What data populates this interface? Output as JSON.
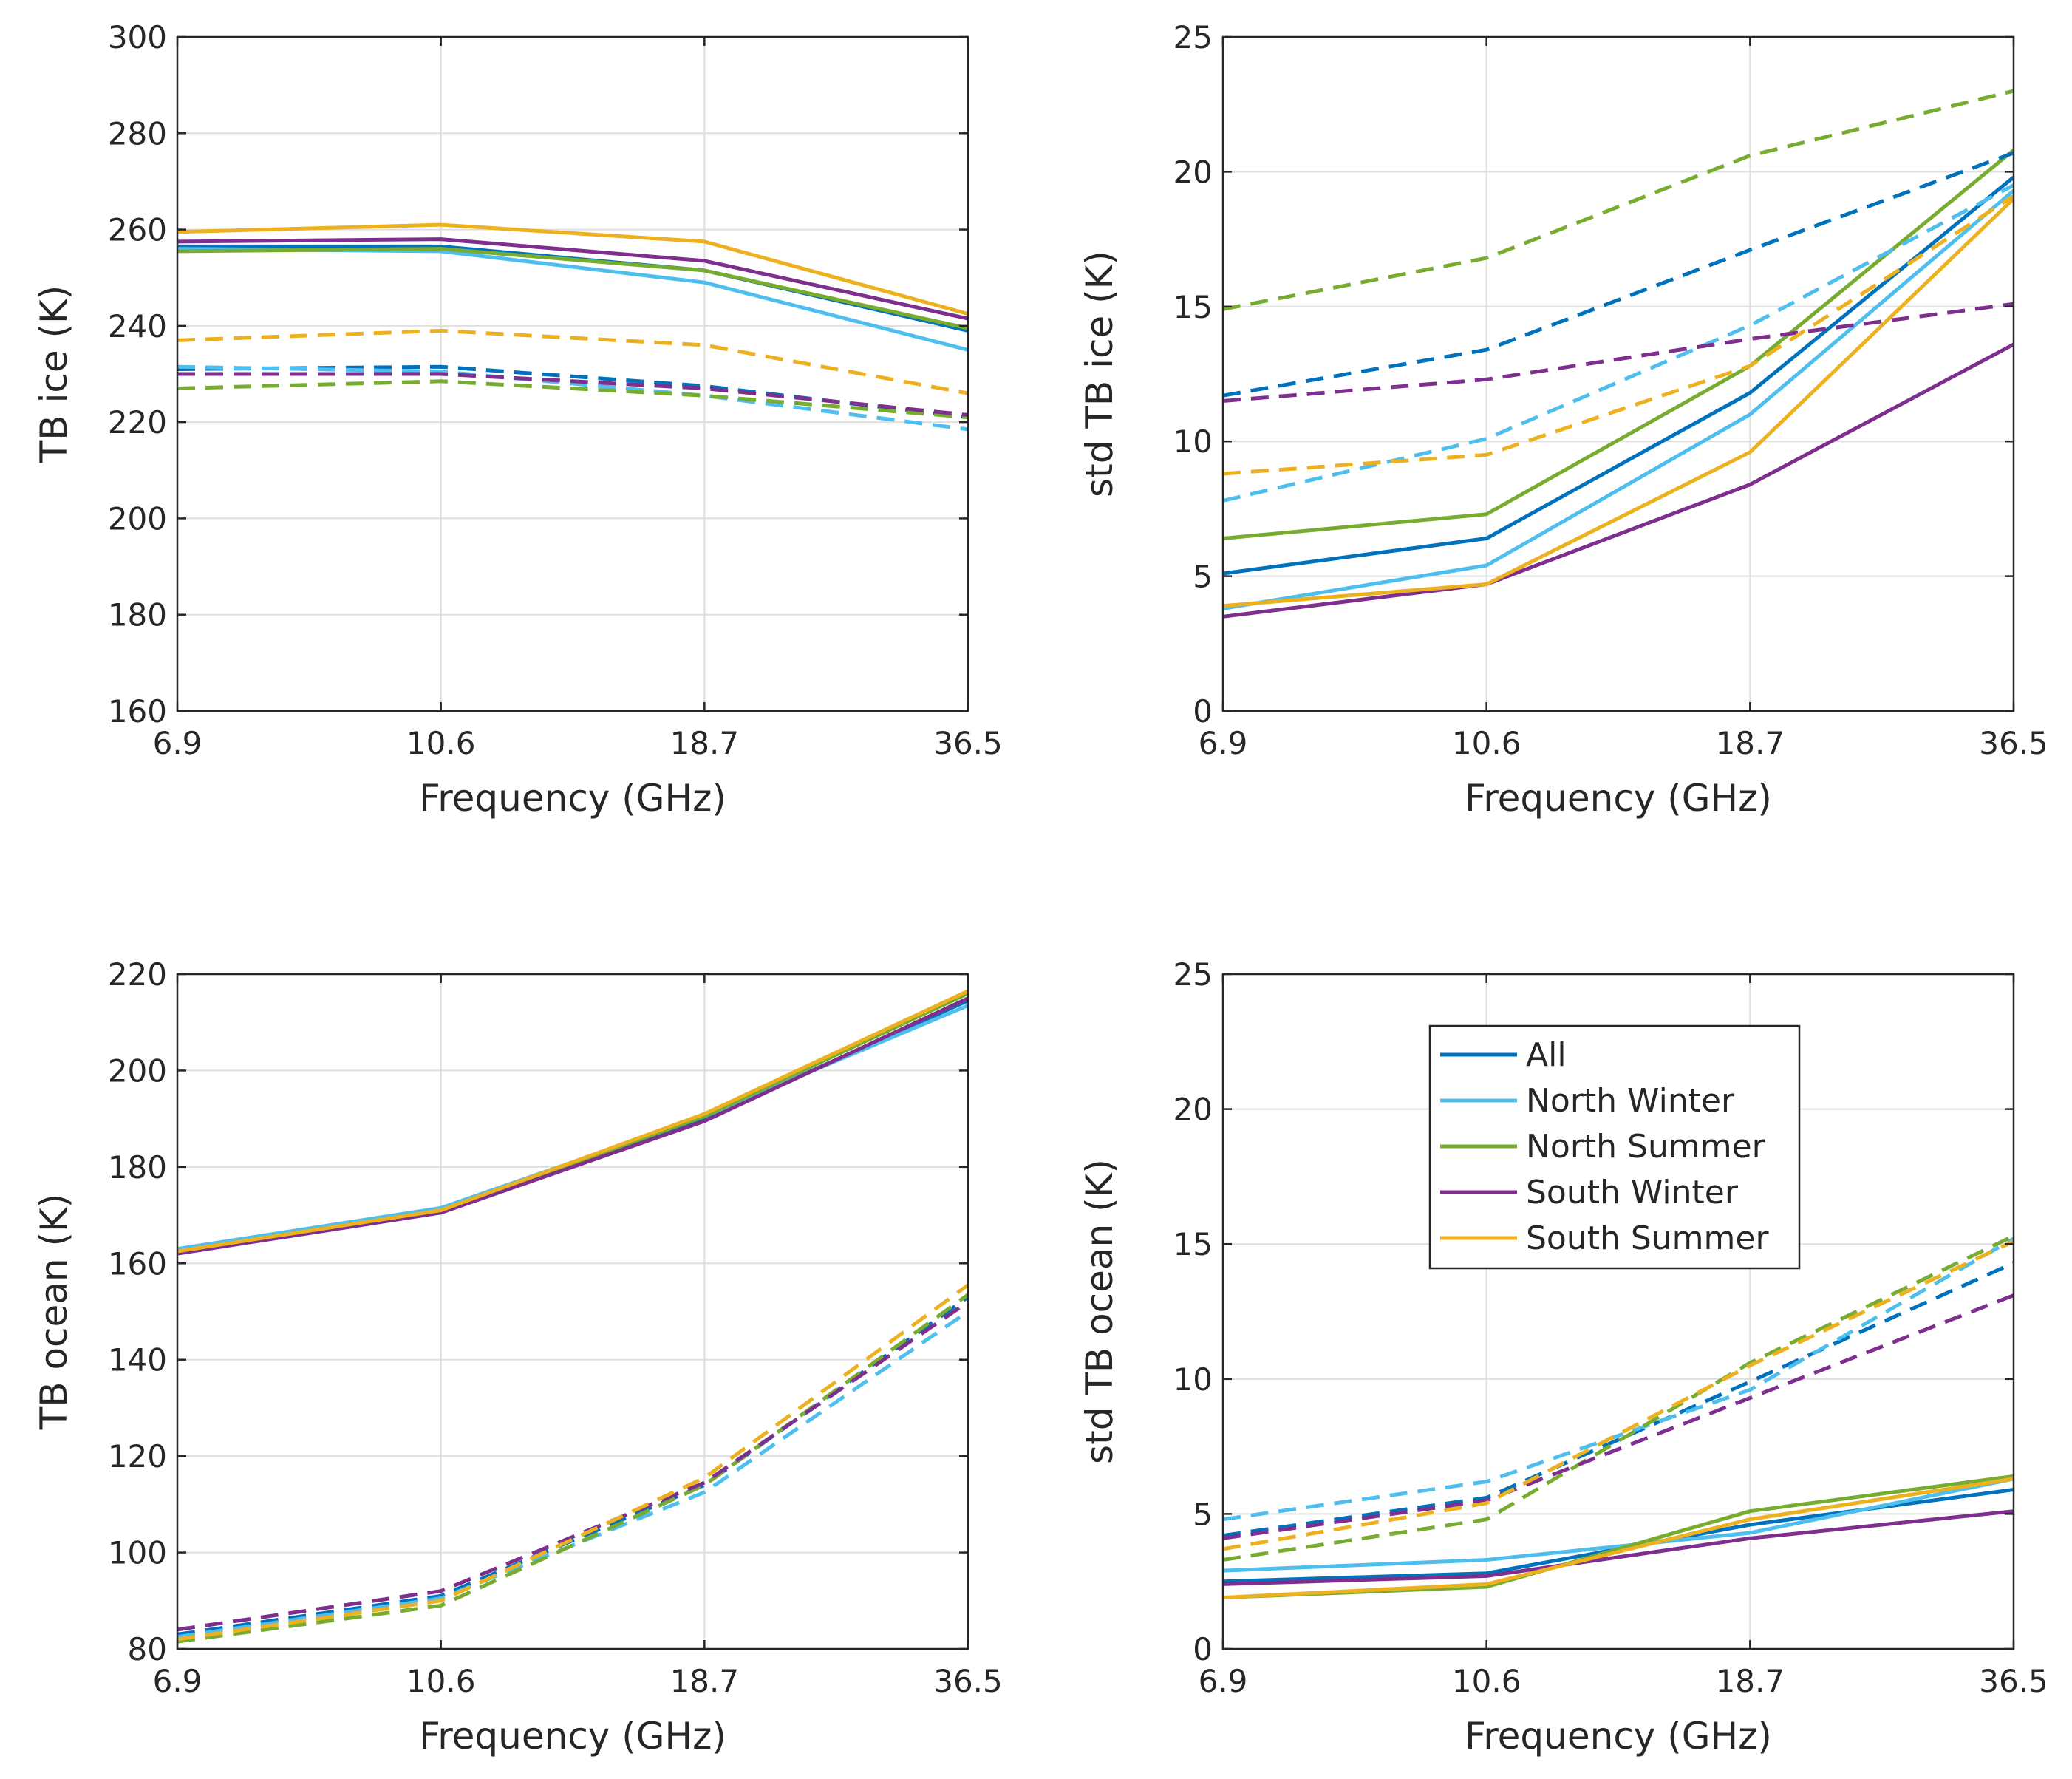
{
  "colors": {
    "All": "#0072BD",
    "North Winter": "#4DBEEE",
    "North Summer": "#77AC30",
    "South Winter": "#7E2F8E",
    "South Summer": "#EDB120",
    "grid": "#dfdfdf",
    "axis": "#262626"
  },
  "chart_data": [
    {
      "type": "line",
      "title": "",
      "xlabel": "Frequency (GHz)",
      "ylabel": "TB ice (K)",
      "categories": [
        "6.9",
        "10.6",
        "18.7",
        "36.5"
      ],
      "ylim": [
        160,
        300
      ],
      "yticks": [
        160,
        180,
        200,
        220,
        240,
        260,
        280,
        300
      ],
      "grid": true,
      "series": [
        {
          "name": "All",
          "style": "solid",
          "values": [
            256.5,
            256.5,
            251.5,
            239
          ]
        },
        {
          "name": "North Winter",
          "style": "solid",
          "values": [
            256,
            255.5,
            249,
            235
          ]
        },
        {
          "name": "North Summer",
          "style": "solid",
          "values": [
            255.5,
            256,
            251.5,
            239.5
          ]
        },
        {
          "name": "South Winter",
          "style": "solid",
          "values": [
            257.5,
            258,
            253.5,
            241.5
          ]
        },
        {
          "name": "South Summer",
          "style": "solid",
          "values": [
            259.5,
            261,
            257.5,
            242.5
          ]
        },
        {
          "name": "All",
          "style": "dashed",
          "values": [
            231,
            231.5,
            227.5,
            221
          ]
        },
        {
          "name": "North Winter",
          "style": "dashed",
          "values": [
            231.5,
            230.5,
            225.5,
            218.5
          ]
        },
        {
          "name": "North Summer",
          "style": "dashed",
          "values": [
            227,
            228.5,
            225.5,
            221
          ]
        },
        {
          "name": "South Winter",
          "style": "dashed",
          "values": [
            230,
            230,
            227,
            221.5
          ]
        },
        {
          "name": "South Summer",
          "style": "dashed",
          "values": [
            237,
            239,
            236,
            226
          ]
        }
      ]
    },
    {
      "type": "line",
      "title": "",
      "xlabel": "Frequency (GHz)",
      "ylabel": "std TB ice (K)",
      "categories": [
        "6.9",
        "10.6",
        "18.7",
        "36.5"
      ],
      "ylim": [
        0,
        25
      ],
      "yticks": [
        0,
        5,
        10,
        15,
        20,
        25
      ],
      "grid": true,
      "series": [
        {
          "name": "All",
          "style": "solid",
          "values": [
            5.1,
            6.4,
            11.8,
            19.8
          ]
        },
        {
          "name": "North Winter",
          "style": "solid",
          "values": [
            3.8,
            5.4,
            11.0,
            19.3
          ]
        },
        {
          "name": "North Summer",
          "style": "solid",
          "values": [
            6.4,
            7.3,
            12.8,
            20.8
          ]
        },
        {
          "name": "South Winter",
          "style": "solid",
          "values": [
            3.5,
            4.7,
            8.4,
            13.6
          ]
        },
        {
          "name": "South Summer",
          "style": "solid",
          "values": [
            3.9,
            4.7,
            9.6,
            19.0
          ]
        },
        {
          "name": "All",
          "style": "dashed",
          "values": [
            11.7,
            13.4,
            17.1,
            20.7
          ]
        },
        {
          "name": "North Winter",
          "style": "dashed",
          "values": [
            7.8,
            10.1,
            14.3,
            19.5
          ]
        },
        {
          "name": "North Summer",
          "style": "dashed",
          "values": [
            14.9,
            16.8,
            20.6,
            23.0
          ]
        },
        {
          "name": "South Winter",
          "style": "dashed",
          "values": [
            11.5,
            12.3,
            13.8,
            15.1
          ]
        },
        {
          "name": "South Summer",
          "style": "dashed",
          "values": [
            8.8,
            9.5,
            12.8,
            19.1
          ]
        }
      ]
    },
    {
      "type": "line",
      "title": "",
      "xlabel": "Frequency (GHz)",
      "ylabel": "TB ocean (K)",
      "categories": [
        "6.9",
        "10.6",
        "18.7",
        "36.5"
      ],
      "ylim": [
        80,
        220
      ],
      "yticks": [
        80,
        100,
        120,
        140,
        160,
        180,
        200,
        220
      ],
      "grid": true,
      "series": [
        {
          "name": "All",
          "style": "solid",
          "values": [
            162.5,
            171,
            190,
            214.5
          ]
        },
        {
          "name": "North Winter",
          "style": "solid",
          "values": [
            163,
            171.5,
            190.5,
            213.5
          ]
        },
        {
          "name": "North Summer",
          "style": "solid",
          "values": [
            162.5,
            171,
            190.5,
            216
          ]
        },
        {
          "name": "South Winter",
          "style": "solid",
          "values": [
            162,
            170.5,
            189.5,
            215
          ]
        },
        {
          "name": "South Summer",
          "style": "solid",
          "values": [
            162.5,
            171,
            191,
            216.5
          ]
        },
        {
          "name": "All",
          "style": "dashed",
          "values": [
            83,
            91,
            114,
            153
          ]
        },
        {
          "name": "North Winter",
          "style": "dashed",
          "values": [
            82.5,
            90.5,
            112.5,
            150
          ]
        },
        {
          "name": "North Summer",
          "style": "dashed",
          "values": [
            81.5,
            89,
            114,
            153.5
          ]
        },
        {
          "name": "South Winter",
          "style": "dashed",
          "values": [
            84,
            92,
            114.5,
            152
          ]
        },
        {
          "name": "South Summer",
          "style": "dashed",
          "values": [
            82,
            90,
            115.5,
            155.5
          ]
        }
      ]
    },
    {
      "type": "line",
      "title": "",
      "xlabel": "Frequency (GHz)",
      "ylabel": "std TB ocean (K)",
      "categories": [
        "6.9",
        "10.6",
        "18.7",
        "36.5"
      ],
      "ylim": [
        0,
        25
      ],
      "yticks": [
        0,
        5,
        10,
        15,
        20,
        25
      ],
      "grid": true,
      "legend": {
        "placement": "upper-middle",
        "entries": [
          "All",
          "North Winter",
          "North Summer",
          "South Winter",
          "South Summer"
        ]
      },
      "series": [
        {
          "name": "All",
          "style": "solid",
          "values": [
            2.5,
            2.8,
            4.6,
            5.9
          ]
        },
        {
          "name": "North Winter",
          "style": "solid",
          "values": [
            2.9,
            3.3,
            4.3,
            6.3
          ]
        },
        {
          "name": "North Summer",
          "style": "solid",
          "values": [
            1.9,
            2.3,
            5.1,
            6.4
          ]
        },
        {
          "name": "South Winter",
          "style": "solid",
          "values": [
            2.4,
            2.7,
            4.1,
            5.1
          ]
        },
        {
          "name": "South Summer",
          "style": "solid",
          "values": [
            1.9,
            2.4,
            4.8,
            6.3
          ]
        },
        {
          "name": "All",
          "style": "dashed",
          "values": [
            4.2,
            5.6,
            9.9,
            14.3
          ]
        },
        {
          "name": "North Winter",
          "style": "dashed",
          "values": [
            4.8,
            6.2,
            9.6,
            15.2
          ]
        },
        {
          "name": "North Summer",
          "style": "dashed",
          "values": [
            3.3,
            4.8,
            10.6,
            15.3
          ]
        },
        {
          "name": "South Winter",
          "style": "dashed",
          "values": [
            4.1,
            5.5,
            9.3,
            13.1
          ]
        },
        {
          "name": "South Summer",
          "style": "dashed",
          "values": [
            3.7,
            5.4,
            10.5,
            15.1
          ]
        }
      ]
    }
  ]
}
